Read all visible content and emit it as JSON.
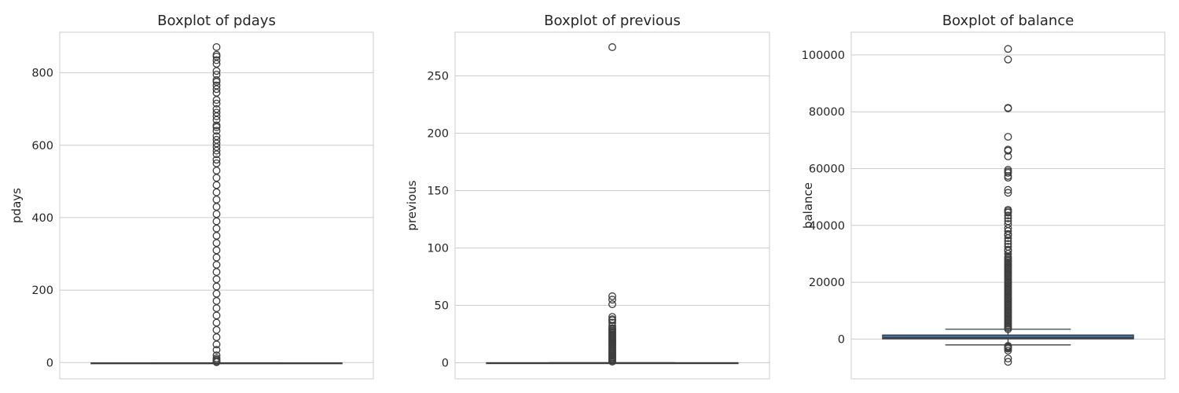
{
  "chart_data": [
    {
      "type": "boxplot",
      "title": "Boxplot of pdays",
      "ylabel": "pdays",
      "ylim": [
        -45,
        912
      ],
      "yticks": [
        0,
        200,
        400,
        600,
        800
      ],
      "ytick_labels": [
        "0",
        "200",
        "400",
        "600",
        "800"
      ],
      "grid": true,
      "box": {
        "whisker_low": -1,
        "q1": -1,
        "median": -1,
        "q3": -1,
        "whisker_high": -1
      },
      "box_color": "#3d3d3d",
      "outliers": [
        1,
        2,
        5,
        8,
        12,
        20,
        35,
        50,
        70,
        90,
        110,
        130,
        150,
        170,
        190,
        210,
        230,
        250,
        270,
        290,
        310,
        330,
        350,
        370,
        390,
        410,
        430,
        450,
        470,
        490,
        510,
        530,
        550,
        560,
        575,
        585,
        595,
        605,
        615,
        625,
        640,
        650,
        655,
        670,
        680,
        690,
        700,
        715,
        725,
        745,
        755,
        765,
        775,
        780,
        795,
        805,
        825,
        835,
        845,
        850,
        871
      ]
    },
    {
      "type": "boxplot",
      "title": "Boxplot of previous",
      "ylabel": "previous",
      "ylim": [
        -14,
        288
      ],
      "yticks": [
        0,
        50,
        100,
        150,
        200,
        250
      ],
      "ytick_labels": [
        "0",
        "50",
        "100",
        "150",
        "200",
        "250"
      ],
      "grid": true,
      "box": {
        "whisker_low": 0,
        "q1": 0,
        "median": 0,
        "q3": 0,
        "whisker_high": 0
      },
      "box_color": "#3d3d3d",
      "outliers": [
        1,
        2,
        3,
        4,
        5,
        6,
        7,
        8,
        9,
        10,
        11,
        12,
        13,
        14,
        15,
        16,
        17,
        18,
        19,
        20,
        21,
        22,
        23,
        24,
        25,
        26,
        27,
        28,
        29,
        30,
        32,
        35,
        37,
        38,
        40,
        51,
        55,
        58,
        275
      ]
    },
    {
      "type": "boxplot",
      "title": "Boxplot of balance",
      "ylabel": "balance",
      "ylim": [
        -14000,
        108000
      ],
      "yticks": [
        0,
        20000,
        40000,
        60000,
        80000,
        100000
      ],
      "ytick_labels": [
        "0",
        "20000",
        "40000",
        "60000",
        "80000",
        "100000"
      ],
      "grid": true,
      "box": {
        "whisker_low": -2050,
        "q1": 72,
        "median": 448,
        "q3": 1428,
        "whisker_high": 3462
      },
      "box_color": "#3a6ea5",
      "outliers": [
        -8019,
        -6847,
        -4057,
        -3372,
        -3000,
        -2700,
        -2400,
        3500,
        4000,
        4500,
        5000,
        5500,
        6000,
        6500,
        7000,
        7500,
        8000,
        8500,
        9000,
        9500,
        10000,
        10500,
        11000,
        11500,
        12000,
        12500,
        13000,
        13500,
        14000,
        14500,
        15000,
        15500,
        16000,
        16500,
        17000,
        17500,
        18000,
        18500,
        19000,
        19500,
        20000,
        20500,
        21000,
        21500,
        22000,
        22500,
        23000,
        23500,
        24000,
        24500,
        25000,
        25500,
        26000,
        26500,
        27000,
        27500,
        28000,
        28500,
        29000,
        30000,
        31000,
        31500,
        32500,
        33500,
        34500,
        35500,
        36500,
        37000,
        38000,
        39000,
        40500,
        41500,
        42500,
        43500,
        44500,
        45000,
        45500,
        51500,
        52500,
        56800,
        57400,
        58500,
        59000,
        59600,
        64300,
        66300,
        66700,
        71200,
        81200,
        81400,
        98400,
        102127
      ]
    }
  ]
}
